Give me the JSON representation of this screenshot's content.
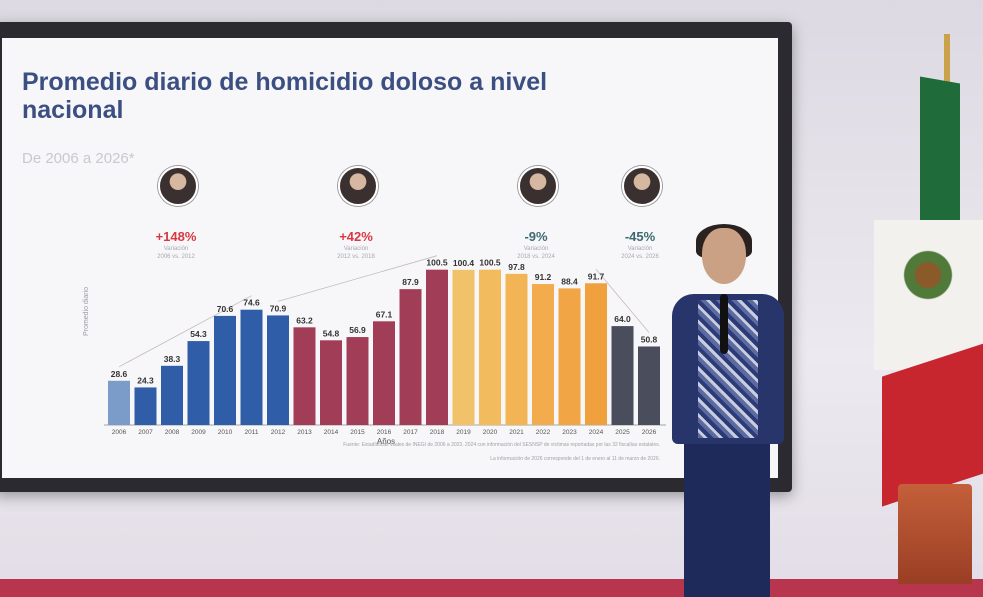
{
  "slide": {
    "title": "Promedio diario de homicidio doloso a nivel nacional",
    "subtitle": "De 2006 a 2026*"
  },
  "periods": [
    {
      "pct": "+148%",
      "direction": "up",
      "sublabel_1": "Variación",
      "sublabel_2": "2006 vs. 2012"
    },
    {
      "pct": "+42%",
      "direction": "up",
      "sublabel_1": "Variación",
      "sublabel_2": "2012 vs. 2018"
    },
    {
      "pct": "-9%",
      "direction": "down",
      "sublabel_1": "Variación",
      "sublabel_2": "2018 vs. 2024"
    },
    {
      "pct": "-45%",
      "direction": "down",
      "sublabel_1": "Variación",
      "sublabel_2": "2024 vs. 2026"
    }
  ],
  "footnote": {
    "line1": "Fuente: Estadísticas vitales de INEGI de 2006 a 2023. 2024 con información del SESNSP de víctimas reportadas por las 32 fiscalías estatales.",
    "line2": "La información de 2026 corresponde del 1 de enero al 11 de marzo de 2026."
  },
  "chart_data": {
    "type": "bar",
    "title": "Promedio diario de homicidio doloso a nivel nacional",
    "subtitle": "De 2006 a 2026*",
    "xlabel": "Años",
    "ylabel": "Promedio diario",
    "ylim": [
      0,
      110
    ],
    "grid": false,
    "categories": [
      "2006",
      "2007",
      "2008",
      "2009",
      "2010",
      "2011",
      "2012",
      "2013",
      "2014",
      "2015",
      "2016",
      "2017",
      "2018",
      "2019",
      "2020",
      "2021",
      "2022",
      "2023",
      "2024",
      "2025",
      "2026"
    ],
    "values": [
      28.6,
      24.3,
      38.3,
      54.3,
      70.6,
      74.6,
      70.9,
      63.2,
      54.8,
      56.9,
      67.1,
      87.9,
      100.5,
      100.4,
      100.5,
      97.8,
      91.2,
      88.4,
      91.7,
      64.0,
      50.8
    ],
    "value_labels": [
      "28.6",
      "24.3",
      "38.3",
      "54.3",
      "70.6",
      "74.6",
      "70.9",
      "63.2",
      "54.8",
      "56.9",
      "67.1",
      "87.9",
      "100.5",
      "100.4",
      "100.5",
      "97.8",
      "91.2",
      "88.4",
      "91.7",
      "64.0",
      "50.8"
    ],
    "bar_colors": [
      "#7b9cc9",
      "#2f5da8",
      "#2f5da8",
      "#2f5da8",
      "#2f5da8",
      "#2f5da8",
      "#2f5da8",
      "#a23d57",
      "#a23d57",
      "#a23d57",
      "#a23d57",
      "#a23d57",
      "#a23d57",
      "#f2c26a",
      "#f2bb5e",
      "#f2b455",
      "#f2ac4d",
      "#f2a544",
      "#f0a03c",
      "#4a4e5c",
      "#4a4e5c"
    ]
  },
  "colors": {
    "title": "#3c4f82",
    "increase": "#d9383f",
    "decrease": "#3c6a72"
  }
}
